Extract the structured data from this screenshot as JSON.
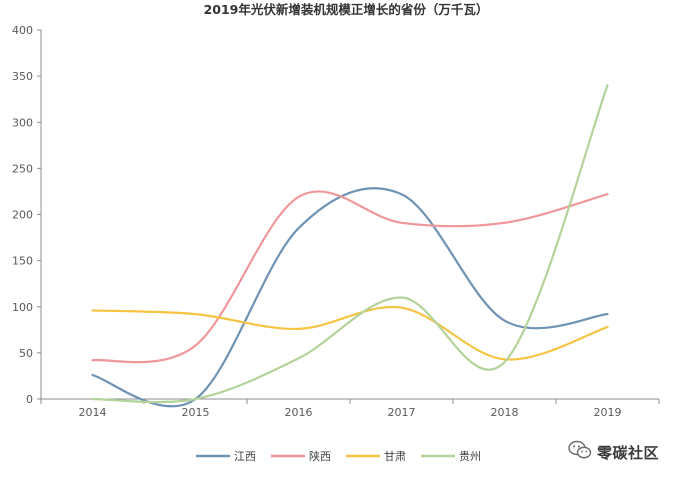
{
  "chart_data": {
    "type": "line",
    "title": "2019年光伏新增装机规模正增长的省份（万千瓦）",
    "categories": [
      "2014",
      "2015",
      "2016",
      "2017",
      "2018",
      "2019"
    ],
    "ylim": [
      0,
      400
    ],
    "yticks": [
      "0",
      "50",
      "100",
      "150",
      "200",
      "250",
      "300",
      "350",
      "400"
    ],
    "smooth": true,
    "grid": false,
    "legend_position": "bottom",
    "series": [
      {
        "name": "江西",
        "color": "#6E93B5",
        "values": [
          26,
          0,
          185,
          222,
          85,
          92
        ]
      },
      {
        "name": "陕西",
        "color": "#F0979B",
        "values": [
          42,
          58,
          219,
          191,
          191,
          222
        ]
      },
      {
        "name": "甘肃",
        "color": "#F5C442",
        "values": [
          96,
          92,
          76,
          99,
          43,
          78
        ]
      },
      {
        "name": "贵州",
        "color": "#B3D39A",
        "values": [
          0,
          0,
          44,
          110,
          40,
          340
        ]
      }
    ]
  },
  "watermark": {
    "text": "零碳社区",
    "icon": "wechat-icon"
  }
}
